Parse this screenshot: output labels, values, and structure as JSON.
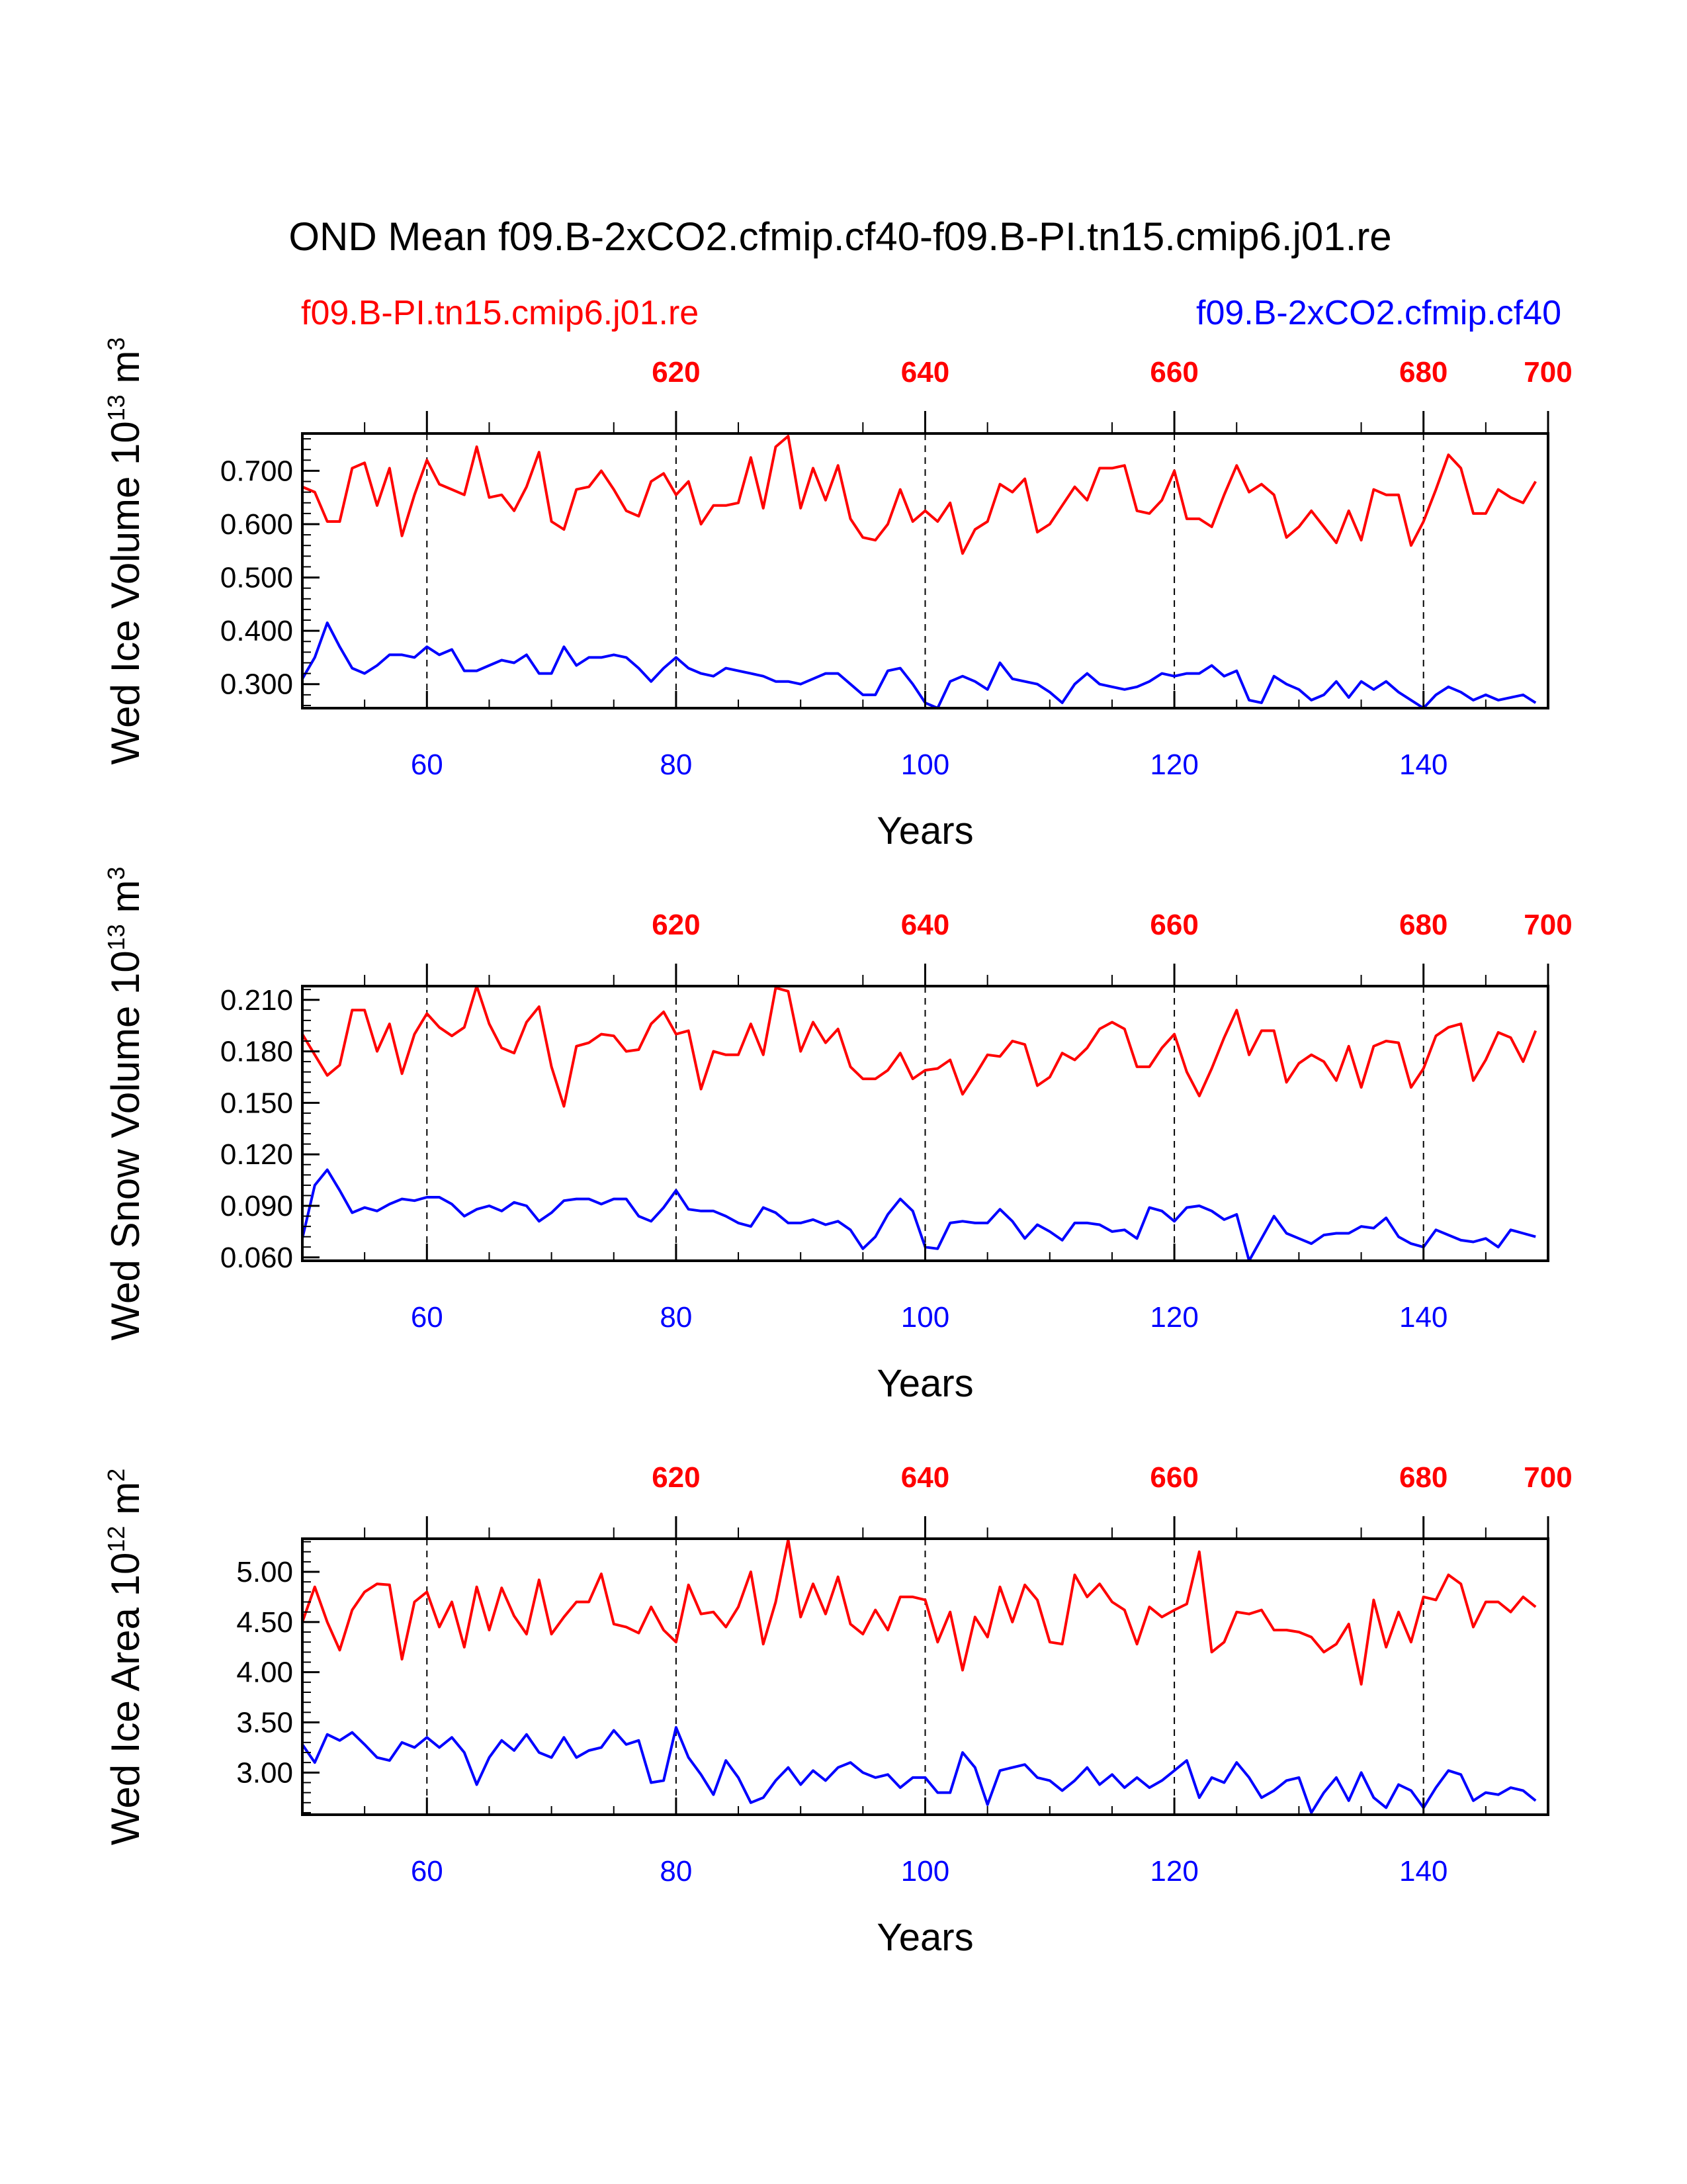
{
  "figure": {
    "title": "OND Mean f09.B-2xCO2.cfmip.cf40-f09.B-PI.tn15.cmip6.j01.re",
    "left_label": "f09.B-PI.tn15.cmip6.j01.re",
    "right_label": "f09.B-2xCO2.cfmip.cf40",
    "colors": {
      "pi": "#ff0000",
      "co2": "#0000ff",
      "axis": "#000000"
    }
  },
  "chart_data": [
    {
      "type": "line",
      "title": "",
      "ylabel": "Wed Ice Volume 10",
      "ylabel_exp": "13",
      "ylabel_unit": " m",
      "ylabel_unit_exp": "3",
      "xlabel": "Years",
      "xlim": [
        50,
        150
      ],
      "ylim": [
        0.255,
        0.77
      ],
      "yticks": [
        0.3,
        0.4,
        0.5,
        0.6,
        0.7
      ],
      "ytick_labels": [
        "0.300",
        "0.400",
        "0.500",
        "0.600",
        "0.700"
      ],
      "xticks_bottom": [
        60,
        80,
        100,
        120,
        140
      ],
      "xtick_labels_bottom": [
        "60",
        "80",
        "100",
        "120",
        "140"
      ],
      "xticks_top": [
        60,
        80,
        100,
        120,
        140,
        150
      ],
      "xtick_labels_top": [
        "620",
        "640",
        "660",
        "680",
        "700"
      ],
      "x_start": 50,
      "series": [
        {
          "name": "f09.B-PI.tn15.cmip6.j01.re",
          "color": "#ff0000",
          "values": [
            0.67,
            0.66,
            0.605,
            0.605,
            0.705,
            0.715,
            0.635,
            0.705,
            0.578,
            0.655,
            0.72,
            0.675,
            0.665,
            0.655,
            0.745,
            0.65,
            0.655,
            0.625,
            0.67,
            0.735,
            0.605,
            0.59,
            0.665,
            0.67,
            0.7,
            0.665,
            0.625,
            0.615,
            0.68,
            0.695,
            0.655,
            0.68,
            0.6,
            0.635,
            0.635,
            0.64,
            0.725,
            0.63,
            0.745,
            0.765,
            0.63,
            0.705,
            0.645,
            0.71,
            0.61,
            0.575,
            0.57,
            0.6,
            0.665,
            0.605,
            0.625,
            0.605,
            0.64,
            0.545,
            0.59,
            0.605,
            0.675,
            0.66,
            0.685,
            0.585,
            0.6,
            0.635,
            0.67,
            0.645,
            0.705,
            0.705,
            0.71,
            0.625,
            0.62,
            0.645,
            0.7,
            0.61,
            0.61,
            0.595,
            0.655,
            0.71,
            0.66,
            0.675,
            0.655,
            0.575,
            0.595,
            0.625,
            0.595,
            0.565,
            0.625,
            0.57,
            0.665,
            0.655,
            0.655,
            0.56,
            0.605,
            0.665,
            0.73,
            0.705,
            0.62,
            0.62,
            0.665,
            0.65,
            0.64,
            0.68
          ]
        },
        {
          "name": "f09.B-2xCO2.cfmip.cf40",
          "color": "#0000ff",
          "values": [
            0.31,
            0.35,
            0.415,
            0.37,
            0.33,
            0.32,
            0.335,
            0.355,
            0.355,
            0.35,
            0.37,
            0.355,
            0.365,
            0.325,
            0.325,
            0.335,
            0.345,
            0.34,
            0.355,
            0.32,
            0.32,
            0.37,
            0.335,
            0.35,
            0.35,
            0.355,
            0.35,
            0.33,
            0.305,
            0.33,
            0.35,
            0.33,
            0.32,
            0.315,
            0.33,
            0.325,
            0.32,
            0.315,
            0.305,
            0.305,
            0.3,
            0.31,
            0.32,
            0.32,
            0.3,
            0.28,
            0.28,
            0.325,
            0.33,
            0.3,
            0.265,
            0.255,
            0.305,
            0.315,
            0.305,
            0.29,
            0.34,
            0.31,
            0.305,
            0.3,
            0.285,
            0.265,
            0.3,
            0.32,
            0.3,
            0.295,
            0.29,
            0.295,
            0.305,
            0.32,
            0.315,
            0.32,
            0.32,
            0.335,
            0.315,
            0.325,
            0.27,
            0.265,
            0.315,
            0.3,
            0.29,
            0.27,
            0.28,
            0.305,
            0.275,
            0.305,
            0.29,
            0.305,
            0.285,
            0.27,
            0.255,
            0.28,
            0.295,
            0.285,
            0.27,
            0.28,
            0.27,
            0.275,
            0.28,
            0.265
          ]
        }
      ]
    },
    {
      "type": "line",
      "title": "",
      "ylabel": "Wed Snow Volume 10",
      "ylabel_exp": "13",
      "ylabel_unit": " m",
      "ylabel_unit_exp": "3",
      "xlabel": "Years",
      "xlim": [
        50,
        150
      ],
      "ylim": [
        0.058,
        0.218
      ],
      "yticks": [
        0.06,
        0.09,
        0.12,
        0.15,
        0.18,
        0.21
      ],
      "ytick_labels": [
        "0.060",
        "0.090",
        "0.120",
        "0.150",
        "0.180",
        "0.210"
      ],
      "xticks_bottom": [
        60,
        80,
        100,
        120,
        140
      ],
      "xtick_labels_bottom": [
        "60",
        "80",
        "100",
        "120",
        "140"
      ],
      "xticks_top": [
        60,
        80,
        100,
        120,
        140,
        150
      ],
      "xtick_labels_top": [
        "620",
        "640",
        "660",
        "680",
        "700"
      ],
      "x_start": 50,
      "series": [
        {
          "name": "f09.B-PI.tn15.cmip6.j01.re",
          "color": "#ff0000",
          "values": [
            0.19,
            0.178,
            0.166,
            0.172,
            0.204,
            0.204,
            0.18,
            0.196,
            0.167,
            0.19,
            0.202,
            0.194,
            0.189,
            0.194,
            0.218,
            0.196,
            0.182,
            0.179,
            0.197,
            0.206,
            0.171,
            0.148,
            0.183,
            0.185,
            0.19,
            0.189,
            0.18,
            0.181,
            0.196,
            0.203,
            0.19,
            0.192,
            0.158,
            0.18,
            0.178,
            0.178,
            0.196,
            0.178,
            0.217,
            0.215,
            0.18,
            0.197,
            0.185,
            0.193,
            0.171,
            0.164,
            0.164,
            0.169,
            0.179,
            0.164,
            0.169,
            0.17,
            0.175,
            0.155,
            0.166,
            0.178,
            0.177,
            0.186,
            0.184,
            0.16,
            0.165,
            0.179,
            0.175,
            0.182,
            0.193,
            0.197,
            0.193,
            0.171,
            0.171,
            0.182,
            0.19,
            0.168,
            0.154,
            0.17,
            0.188,
            0.204,
            0.178,
            0.192,
            0.192,
            0.162,
            0.173,
            0.178,
            0.174,
            0.163,
            0.183,
            0.159,
            0.183,
            0.186,
            0.185,
            0.159,
            0.17,
            0.189,
            0.194,
            0.196,
            0.163,
            0.175,
            0.191,
            0.188,
            0.174,
            0.192
          ]
        },
        {
          "name": "f09.B-2xCO2.cfmip.cf40",
          "color": "#0000ff",
          "values": [
            0.071,
            0.102,
            0.111,
            0.099,
            0.086,
            0.089,
            0.087,
            0.091,
            0.094,
            0.093,
            0.095,
            0.095,
            0.091,
            0.084,
            0.088,
            0.09,
            0.087,
            0.092,
            0.09,
            0.081,
            0.086,
            0.093,
            0.094,
            0.094,
            0.091,
            0.094,
            0.094,
            0.084,
            0.081,
            0.089,
            0.099,
            0.088,
            0.087,
            0.087,
            0.084,
            0.08,
            0.078,
            0.089,
            0.086,
            0.08,
            0.08,
            0.082,
            0.079,
            0.081,
            0.076,
            0.065,
            0.072,
            0.085,
            0.094,
            0.087,
            0.066,
            0.065,
            0.08,
            0.081,
            0.08,
            0.08,
            0.088,
            0.081,
            0.071,
            0.079,
            0.075,
            0.07,
            0.08,
            0.08,
            0.079,
            0.075,
            0.076,
            0.071,
            0.089,
            0.087,
            0.081,
            0.089,
            0.09,
            0.087,
            0.082,
            0.085,
            0.058,
            0.071,
            0.084,
            0.074,
            0.071,
            0.068,
            0.073,
            0.074,
            0.074,
            0.078,
            0.077,
            0.083,
            0.072,
            0.068,
            0.066,
            0.076,
            0.073,
            0.07,
            0.069,
            0.071,
            0.066,
            0.076,
            0.074,
            0.072
          ]
        }
      ]
    },
    {
      "type": "line",
      "title": "",
      "ylabel": "Wed Ice Area 10",
      "ylabel_exp": "12",
      "ylabel_unit": " m",
      "ylabel_unit_exp": "2",
      "xlabel": "Years",
      "xlim": [
        50,
        150
      ],
      "ylim": [
        2.58,
        5.33
      ],
      "yticks": [
        3.0,
        3.5,
        4.0,
        4.5,
        5.0
      ],
      "ytick_labels": [
        "3.00",
        "3.50",
        "4.00",
        "4.50",
        "5.00"
      ],
      "xticks_bottom": [
        60,
        80,
        100,
        120,
        140
      ],
      "xtick_labels_bottom": [
        "60",
        "80",
        "100",
        "120",
        "140"
      ],
      "xticks_top": [
        60,
        80,
        100,
        120,
        140,
        150
      ],
      "xtick_labels_top": [
        "620",
        "640",
        "660",
        "680",
        "700"
      ],
      "x_start": 50,
      "series": [
        {
          "name": "f09.B-PI.tn15.cmip6.j01.re",
          "color": "#ff0000",
          "values": [
            4.5,
            4.85,
            4.5,
            4.22,
            4.62,
            4.8,
            4.88,
            4.87,
            4.13,
            4.7,
            4.8,
            4.45,
            4.7,
            4.25,
            4.85,
            4.42,
            4.84,
            4.56,
            4.38,
            4.92,
            4.38,
            4.55,
            4.7,
            4.7,
            4.98,
            4.48,
            4.45,
            4.39,
            4.65,
            4.42,
            4.3,
            4.87,
            4.58,
            4.6,
            4.45,
            4.65,
            5.0,
            4.28,
            4.7,
            5.32,
            4.55,
            4.88,
            4.58,
            4.95,
            4.48,
            4.38,
            4.62,
            4.42,
            4.75,
            4.75,
            4.72,
            4.3,
            4.6,
            4.02,
            4.55,
            4.35,
            4.85,
            4.5,
            4.87,
            4.72,
            4.3,
            4.28,
            4.97,
            4.75,
            4.88,
            4.7,
            4.62,
            4.28,
            4.65,
            4.55,
            4.62,
            4.68,
            5.2,
            4.2,
            4.3,
            4.6,
            4.58,
            4.62,
            4.42,
            4.42,
            4.4,
            4.35,
            4.2,
            4.28,
            4.48,
            3.88,
            4.72,
            4.25,
            4.6,
            4.3,
            4.75,
            4.72,
            4.97,
            4.88,
            4.45,
            4.7,
            4.7,
            4.6,
            4.75,
            4.65
          ]
        },
        {
          "name": "f09.B-2xCO2.cfmip.cf40",
          "color": "#0000ff",
          "values": [
            3.28,
            3.1,
            3.38,
            3.32,
            3.4,
            3.28,
            3.15,
            3.12,
            3.3,
            3.25,
            3.35,
            3.25,
            3.35,
            3.2,
            2.88,
            3.15,
            3.32,
            3.22,
            3.38,
            3.2,
            3.15,
            3.35,
            3.15,
            3.22,
            3.25,
            3.42,
            3.28,
            3.32,
            2.9,
            2.92,
            3.45,
            3.15,
            2.98,
            2.78,
            3.12,
            2.95,
            2.7,
            2.75,
            2.92,
            3.05,
            2.88,
            3.02,
            2.92,
            3.05,
            3.1,
            3.0,
            2.95,
            2.98,
            2.85,
            2.95,
            2.95,
            2.8,
            2.8,
            3.2,
            3.05,
            2.68,
            3.02,
            3.05,
            3.08,
            2.95,
            2.92,
            2.82,
            2.92,
            3.05,
            2.88,
            2.98,
            2.85,
            2.95,
            2.85,
            2.92,
            3.02,
            3.12,
            2.75,
            2.95,
            2.9,
            3.1,
            2.95,
            2.75,
            2.82,
            2.92,
            2.95,
            2.6,
            2.8,
            2.95,
            2.72,
            3.0,
            2.75,
            2.65,
            2.88,
            2.82,
            2.65,
            2.85,
            3.02,
            2.98,
            2.72,
            2.8,
            2.78,
            2.85,
            2.82,
            2.72
          ]
        }
      ]
    }
  ]
}
